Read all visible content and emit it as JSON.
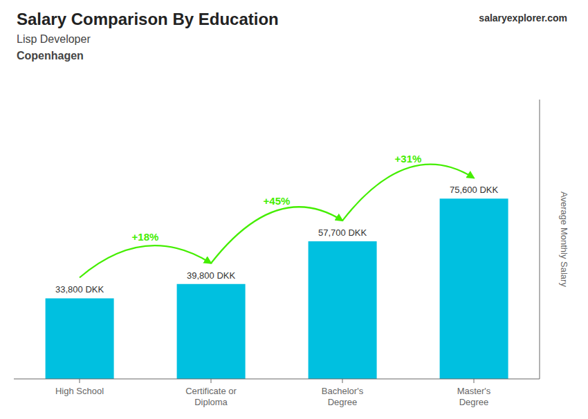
{
  "chart_data": {
    "type": "bar",
    "title": "Salary Comparison By Education",
    "subtitle": [
      "Lisp Developer",
      "Copenhagen"
    ],
    "ylabel": "Average Monthly Salary",
    "categories": [
      "High School",
      "Certificate or\nDiploma",
      "Bachelor's\nDegree",
      "Master's\nDegree"
    ],
    "values": [
      33800,
      39800,
      57700,
      75600
    ],
    "value_labels": [
      "33,800 DKK",
      "39,800 DKK",
      "57,700 DKK",
      "75,600 DKK"
    ],
    "data_labels": true,
    "color": "#00c0e0",
    "ylim": [
      0,
      117180
    ],
    "tick_labels": "x",
    "grid": false,
    "annotations": [
      {
        "text": "+18%",
        "from": "High School",
        "to": "Certificate or\nDiploma",
        "color": "#44ee00"
      },
      {
        "text": "+45%",
        "from": "Certificate or\nDiploma",
        "to": "Bachelor's\nDegree",
        "color": "#44ee00"
      },
      {
        "text": "+31%",
        "from": "Bachelor's\nDegree",
        "to": "Master's\nDegree",
        "color": "#44ee00"
      },
      {
        "text": "salary"
      },
      {
        "text": "explorer"
      },
      {
        "text": ".com"
      }
    ]
  }
}
